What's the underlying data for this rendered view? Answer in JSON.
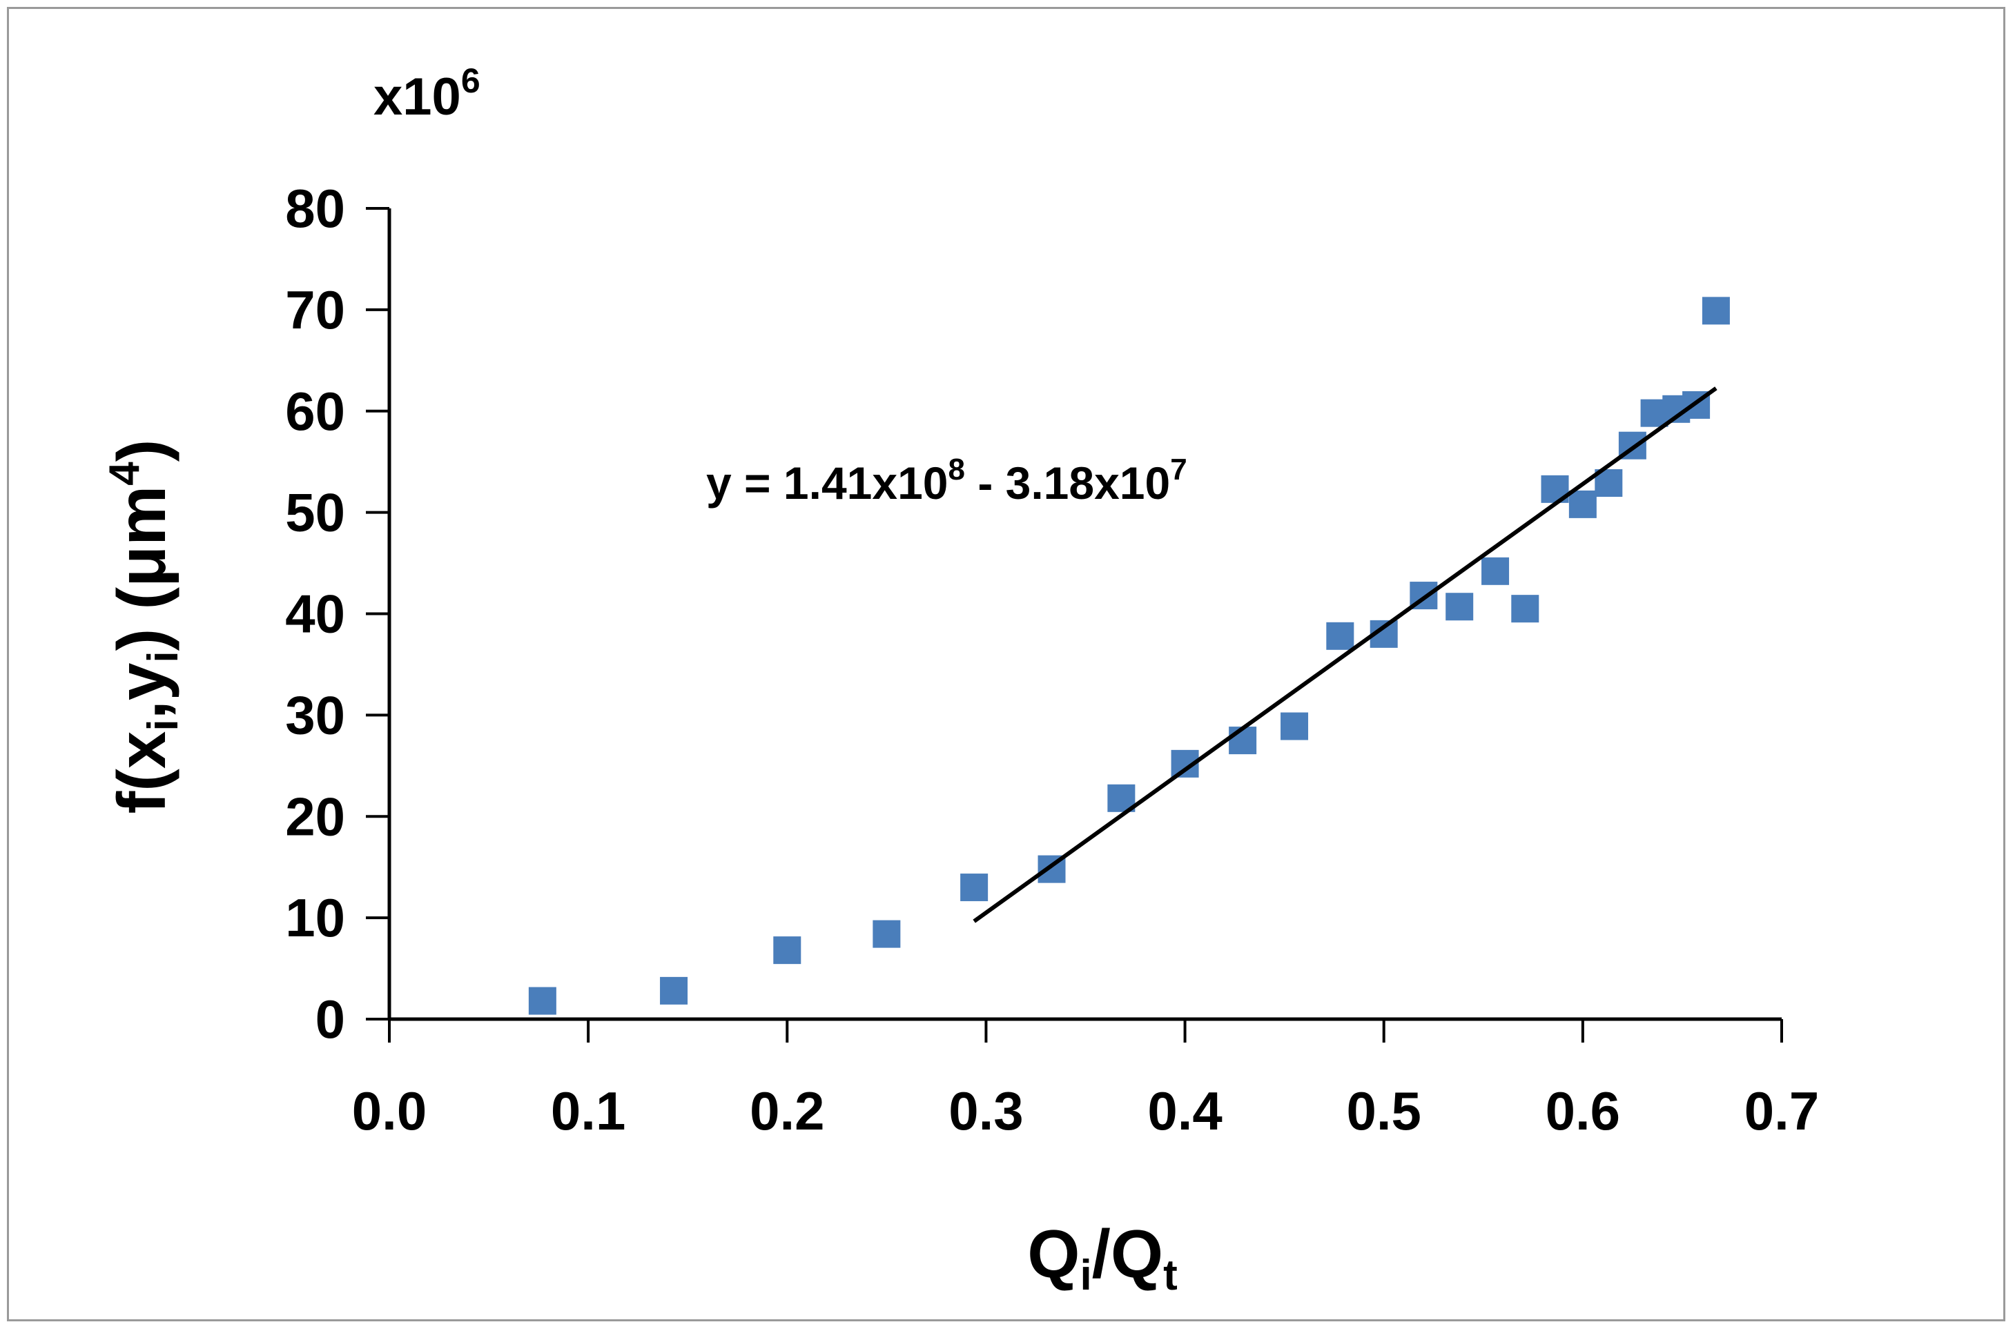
{
  "chart_data": {
    "type": "scatter",
    "x_axis": {
      "title_parts": [
        "Q",
        "i",
        "/Q",
        "t"
      ],
      "range": [
        0.0,
        0.7
      ],
      "ticks": [
        "0.0",
        "0.1",
        "0.2",
        "0.3",
        "0.4",
        "0.5",
        "0.6",
        "0.7"
      ]
    },
    "y_axis": {
      "title_parts": [
        "f(x",
        "i",
        ",y",
        "i",
        ") (μm",
        "4",
        ")"
      ],
      "range": [
        0,
        80
      ],
      "ticks": [
        "0",
        "10",
        "20",
        "30",
        "40",
        "50",
        "60",
        "70",
        "80"
      ],
      "multiplier": {
        "base": "x10",
        "exp": "6"
      }
    },
    "grid": false,
    "legend": "none",
    "series": [
      {
        "marker": "square",
        "color": "#4a7ebb",
        "points": [
          {
            "x": 0.077,
            "y": 1.8
          },
          {
            "x": 0.143,
            "y": 2.8
          },
          {
            "x": 0.2,
            "y": 6.8
          },
          {
            "x": 0.25,
            "y": 8.4
          },
          {
            "x": 0.294,
            "y": 13.0
          },
          {
            "x": 0.333,
            "y": 14.8
          },
          {
            "x": 0.368,
            "y": 21.8
          },
          {
            "x": 0.4,
            "y": 25.2
          },
          {
            "x": 0.429,
            "y": 27.5
          },
          {
            "x": 0.455,
            "y": 28.9
          },
          {
            "x": 0.478,
            "y": 37.8
          },
          {
            "x": 0.5,
            "y": 38.0
          },
          {
            "x": 0.52,
            "y": 41.8
          },
          {
            "x": 0.538,
            "y": 40.7
          },
          {
            "x": 0.556,
            "y": 44.2
          },
          {
            "x": 0.571,
            "y": 40.5
          },
          {
            "x": 0.586,
            "y": 52.3
          },
          {
            "x": 0.6,
            "y": 50.8
          },
          {
            "x": 0.613,
            "y": 52.9
          },
          {
            "x": 0.625,
            "y": 56.6
          },
          {
            "x": 0.636,
            "y": 59.8
          },
          {
            "x": 0.647,
            "y": 60.2
          },
          {
            "x": 0.657,
            "y": 60.6
          },
          {
            "x": 0.667,
            "y": 69.9
          }
        ]
      }
    ],
    "trendline": {
      "type": "linear",
      "color": "#000000",
      "x_range": [
        0.294,
        0.667
      ],
      "slope": 141,
      "intercept": -31.8,
      "label_parts": [
        "y = 1.41x10",
        "8",
        " - 3.18x10",
        "7"
      ]
    }
  }
}
